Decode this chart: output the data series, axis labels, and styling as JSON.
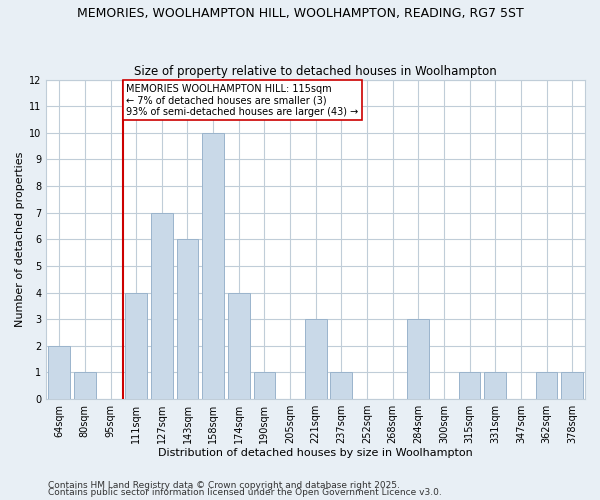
{
  "title": "MEMORIES, WOOLHAMPTON HILL, WOOLHAMPTON, READING, RG7 5ST",
  "subtitle": "Size of property relative to detached houses in Woolhampton",
  "xlabel": "Distribution of detached houses by size in Woolhampton",
  "ylabel": "Number of detached properties",
  "bar_labels": [
    "64sqm",
    "80sqm",
    "95sqm",
    "111sqm",
    "127sqm",
    "143sqm",
    "158sqm",
    "174sqm",
    "190sqm",
    "205sqm",
    "221sqm",
    "237sqm",
    "252sqm",
    "268sqm",
    "284sqm",
    "300sqm",
    "315sqm",
    "331sqm",
    "347sqm",
    "362sqm",
    "378sqm"
  ],
  "bar_values": [
    2,
    1,
    0,
    4,
    7,
    6,
    10,
    4,
    1,
    0,
    3,
    1,
    0,
    0,
    3,
    0,
    1,
    1,
    0,
    1,
    1
  ],
  "bar_color": "#c9d9e8",
  "bar_edge_color": "#9ab4cc",
  "vline_index": 3,
  "vline_color": "#cc0000",
  "annotation_text": "MEMORIES WOOLHAMPTON HILL: 115sqm\n← 7% of detached houses are smaller (3)\n93% of semi-detached houses are larger (43) →",
  "annotation_box_color": "white",
  "annotation_box_edge_color": "#cc0000",
  "ylim": [
    0,
    12
  ],
  "yticks": [
    0,
    1,
    2,
    3,
    4,
    5,
    6,
    7,
    8,
    9,
    10,
    11,
    12
  ],
  "footer1": "Contains HM Land Registry data © Crown copyright and database right 2025.",
  "footer2": "Contains public sector information licensed under the Open Government Licence v3.0.",
  "bg_color": "#e8eff5",
  "plot_bg_color": "#ffffff",
  "grid_color": "#c0cdd8",
  "title_fontsize": 9,
  "subtitle_fontsize": 8.5,
  "xlabel_fontsize": 8,
  "ylabel_fontsize": 8,
  "tick_fontsize": 7,
  "footer_fontsize": 6.5,
  "annotation_fontsize": 7
}
